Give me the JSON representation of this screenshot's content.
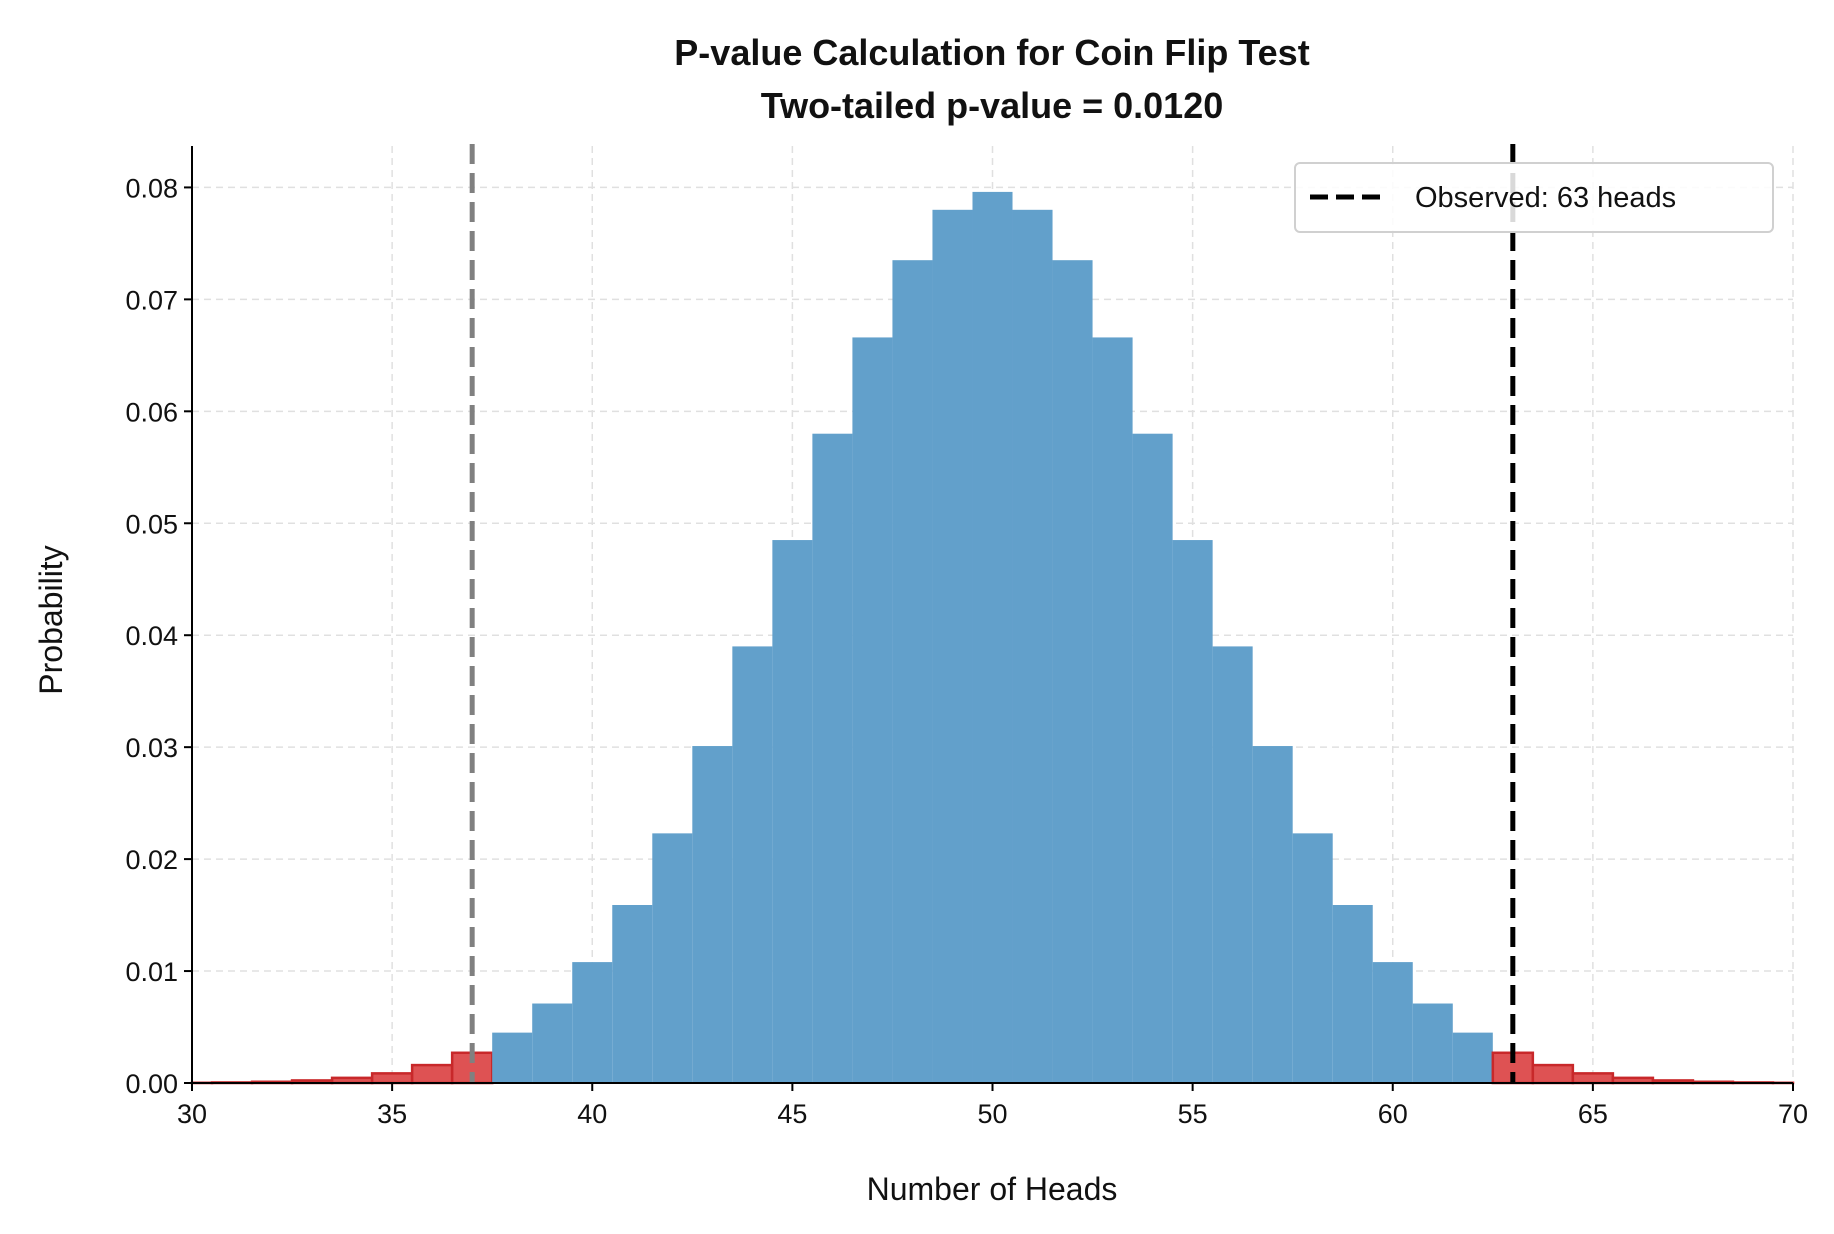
{
  "chart_data": {
    "type": "bar",
    "title": "P-value Calculation for Coin Flip Test",
    "subtitle": "Two-tailed p-value = 0.0120",
    "xlabel": "Number of Heads",
    "ylabel": "Probability",
    "xlim": [
      30,
      70
    ],
    "ylim": [
      0,
      0.0837
    ],
    "xticks": [
      30,
      35,
      40,
      45,
      50,
      55,
      60,
      65,
      70
    ],
    "yticks": [
      0.0,
      0.01,
      0.02,
      0.03,
      0.04,
      0.05,
      0.06,
      0.07,
      0.08
    ],
    "ytick_labels": [
      "0.00",
      "0.01",
      "0.02",
      "0.03",
      "0.04",
      "0.05",
      "0.06",
      "0.07",
      "0.08"
    ],
    "grid": true,
    "bar_width": 1,
    "x": [
      30,
      31,
      32,
      33,
      34,
      35,
      36,
      37,
      38,
      39,
      40,
      41,
      42,
      43,
      44,
      45,
      46,
      47,
      48,
      49,
      50,
      51,
      52,
      53,
      54,
      55,
      56,
      57,
      58,
      59,
      60,
      61,
      62,
      63,
      64,
      65,
      66,
      67,
      68,
      69,
      70
    ],
    "values": [
      2e-05,
      5e-05,
      0.00011,
      0.00023,
      0.00046,
      0.00086,
      0.0016,
      0.0027,
      0.0045,
      0.0071,
      0.0108,
      0.0159,
      0.0223,
      0.0301,
      0.039,
      0.0485,
      0.058,
      0.0666,
      0.0735,
      0.078,
      0.0796,
      0.078,
      0.0735,
      0.0666,
      0.058,
      0.0485,
      0.039,
      0.0301,
      0.0223,
      0.0159,
      0.0108,
      0.0071,
      0.0045,
      0.0027,
      0.0016,
      0.00086,
      0.00046,
      0.00023,
      0.00011,
      5e-05,
      2e-05
    ],
    "tail_lower_max": 37,
    "tail_upper_min": 63,
    "colors": {
      "center": "#62a0cb",
      "tail": "#de5253",
      "tail_edge": "#c8282a",
      "observed_line": "#000000",
      "mirror_line": "#808080"
    },
    "vlines": [
      {
        "x": 63,
        "style": "dashed",
        "color": "#000000",
        "legend": "Observed: 63 heads"
      },
      {
        "x": 37,
        "style": "dashed",
        "color": "#808080"
      }
    ],
    "legend_placement": "top-right"
  }
}
